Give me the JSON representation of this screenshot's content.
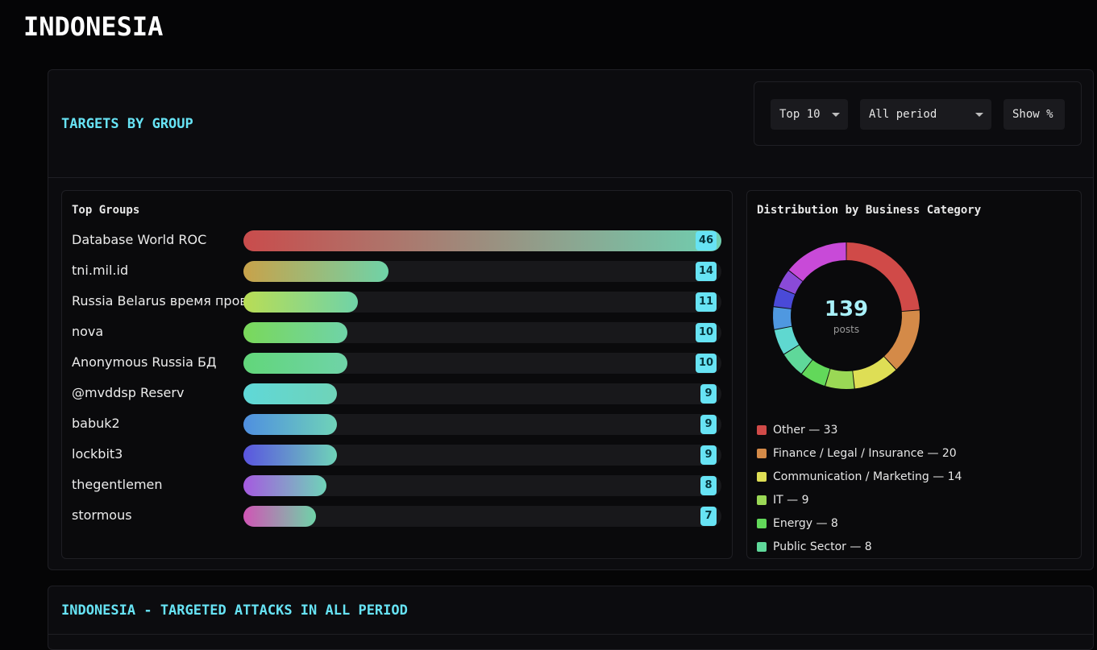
{
  "page": {
    "title": "INDONESIA"
  },
  "section": {
    "title": "TARGETS BY GROUP",
    "controls": {
      "top_select": "Top 10",
      "period_select": "All period",
      "show_percent": "Show %"
    }
  },
  "top_groups": {
    "title": "Top Groups",
    "max": 46,
    "items": [
      {
        "label": "Database World ROC",
        "value": 46,
        "gradient": [
          "#c94c4c",
          "#6fcfb0"
        ]
      },
      {
        "label": "tni.mil.id",
        "value": 14,
        "gradient": [
          "#c8a24a",
          "#6fd3a8"
        ]
      },
      {
        "label": "Russia Belarus время пров",
        "value": 11,
        "gradient": [
          "#b9dd55",
          "#6fd3a8"
        ]
      },
      {
        "label": "nova",
        "value": 10,
        "gradient": [
          "#7ad85a",
          "#6fd3a8"
        ]
      },
      {
        "label": "Anonymous Russia БД",
        "value": 10,
        "gradient": [
          "#62d67a",
          "#6fd3a8"
        ]
      },
      {
        "label": "@mvddsp Reserv",
        "value": 9,
        "gradient": [
          "#5fd8d8",
          "#6fd3b8"
        ]
      },
      {
        "label": "babuk2",
        "value": 9,
        "gradient": [
          "#4f8fe0",
          "#6fd3b8"
        ]
      },
      {
        "label": "lockbit3",
        "value": 9,
        "gradient": [
          "#5a55e0",
          "#6fd3b8"
        ]
      },
      {
        "label": "thegentlemen",
        "value": 8,
        "gradient": [
          "#a55ae0",
          "#6fd3b8"
        ]
      },
      {
        "label": "stormous",
        "value": 7,
        "gradient": [
          "#d055b5",
          "#6fd3a8"
        ]
      }
    ]
  },
  "distribution": {
    "title": "Distribution by Business Category",
    "total": "139",
    "total_label": "posts",
    "legend": [
      {
        "label": "Other — 33",
        "color": "#d04a48"
      },
      {
        "label": "Finance / Legal / Insurance — 20",
        "color": "#d48a48"
      },
      {
        "label": "Communication / Marketing — 14",
        "color": "#dede55"
      },
      {
        "label": "IT — 9",
        "color": "#9ad855"
      },
      {
        "label": "Energy — 8",
        "color": "#62d85a"
      },
      {
        "label": "Public Sector — 8",
        "color": "#5fd89a"
      }
    ]
  },
  "chart_data": {
    "type": "pie",
    "title": "Distribution by Business Category",
    "total": 139,
    "slices": [
      {
        "label": "Other",
        "value": 33,
        "color": "#d04a48"
      },
      {
        "label": "Finance / Legal / Insurance",
        "value": 20,
        "color": "#d48a48"
      },
      {
        "label": "Communication / Marketing",
        "value": 14,
        "color": "#dede55"
      },
      {
        "label": "IT",
        "value": 9,
        "color": "#9ad855"
      },
      {
        "label": "Energy",
        "value": 8,
        "color": "#62d85a"
      },
      {
        "label": "Public Sector",
        "value": 8,
        "color": "#5fd89a"
      },
      {
        "value": 8,
        "color": "#5fd8d0"
      },
      {
        "value": 7,
        "color": "#4f98e0"
      },
      {
        "value": 6,
        "color": "#4a4ad8"
      },
      {
        "value": 6,
        "color": "#8a4ad8"
      },
      {
        "value": 20,
        "color": "#c84ad8"
      }
    ]
  },
  "section2": {
    "title": "INDONESIA - TARGETED ATTACKS IN ALL PERIOD"
  }
}
